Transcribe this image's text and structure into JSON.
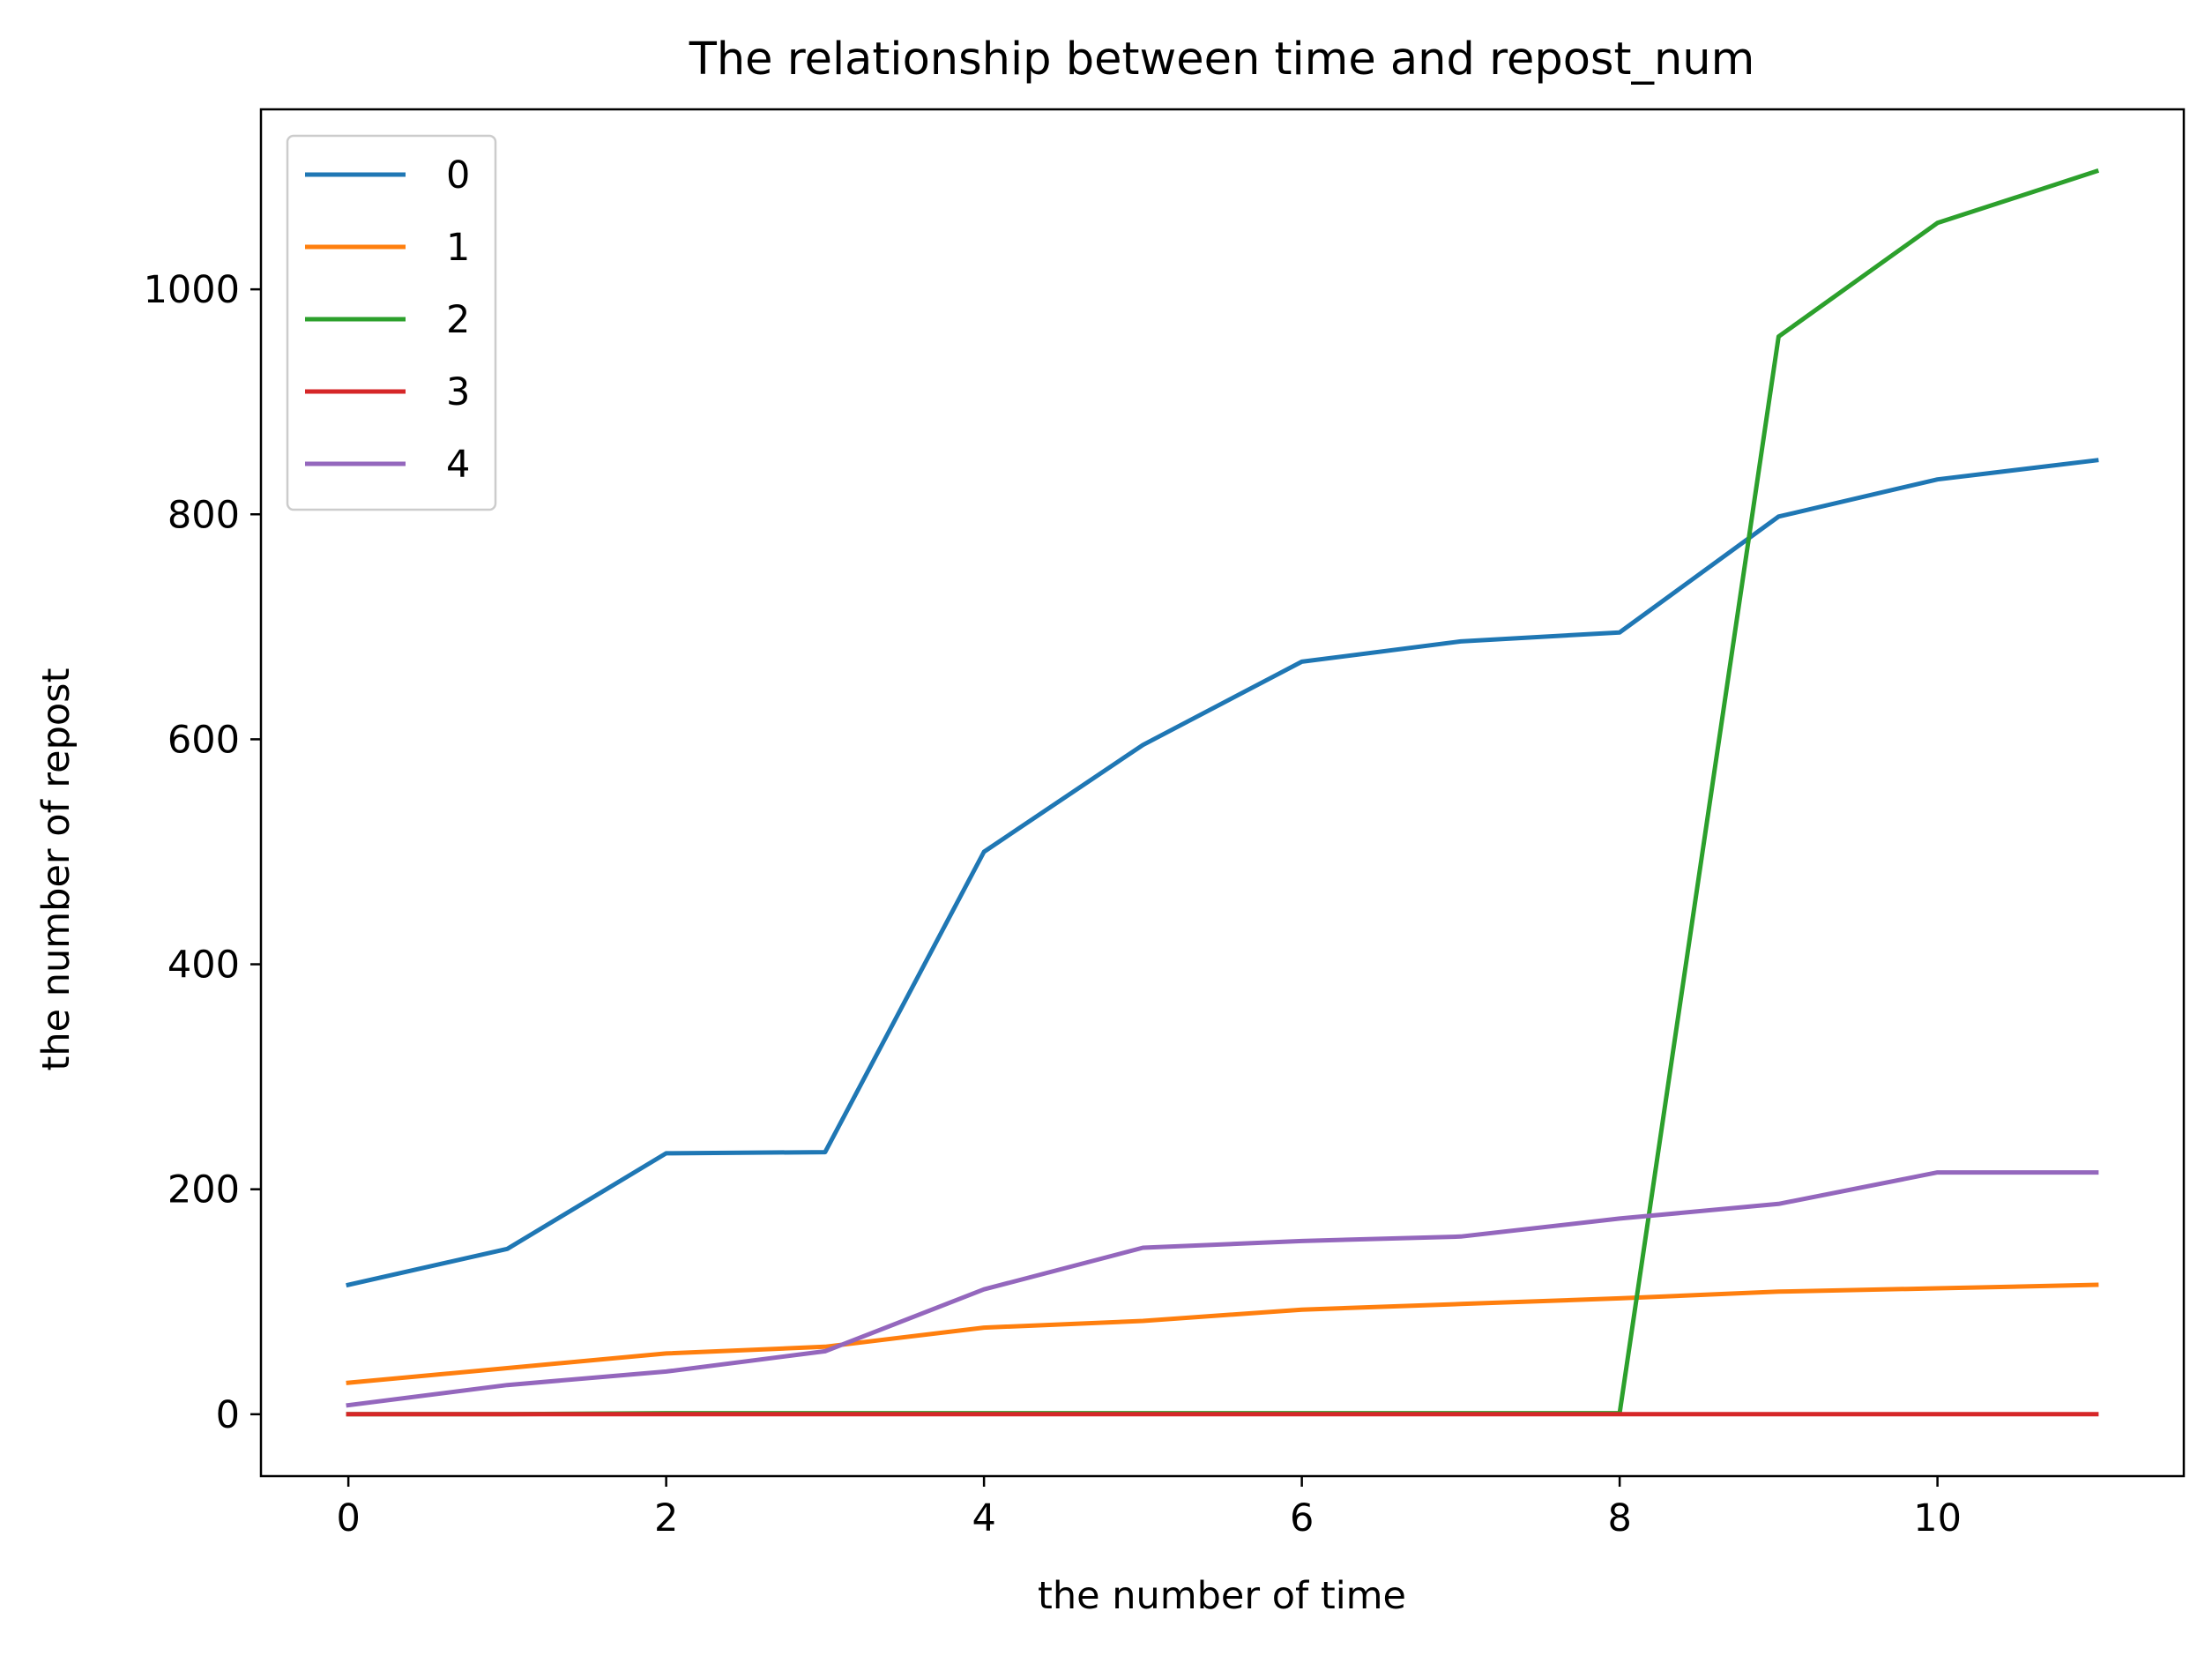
{
  "chart_data": {
    "type": "line",
    "title": "The relationship between time and repost_num",
    "xlabel": "the number of time",
    "ylabel": "the number of repost",
    "x": [
      0,
      1,
      2,
      3,
      4,
      5,
      6,
      7,
      8,
      9,
      10,
      11
    ],
    "xlim": [
      -0.55,
      11.55
    ],
    "ylim": [
      -55,
      1160
    ],
    "xticks": [
      0,
      2,
      4,
      6,
      8,
      10
    ],
    "xtick_labels": [
      "0",
      "2",
      "4",
      "6",
      "8",
      "10"
    ],
    "yticks": [
      0,
      200,
      400,
      600,
      800,
      1000
    ],
    "ytick_labels": [
      "0",
      "200",
      "400",
      "600",
      "800",
      "1000"
    ],
    "grid": false,
    "legend_position": "upper-left",
    "series": [
      {
        "name": "0",
        "color": "#1f77b4",
        "values": [
          115,
          147,
          232,
          233,
          500,
          595,
          669,
          687,
          695,
          798,
          831,
          848
        ]
      },
      {
        "name": "1",
        "color": "#ff7f0e",
        "values": [
          28,
          41,
          54,
          60,
          77,
          83,
          93,
          98,
          103,
          109,
          112,
          115
        ]
      },
      {
        "name": "2",
        "color": "#2ca02c",
        "values": [
          0,
          0,
          1,
          1,
          1,
          1,
          1,
          1,
          1,
          958,
          1059,
          1105
        ]
      },
      {
        "name": "3",
        "color": "#d62728",
        "values": [
          0,
          0,
          0,
          0,
          0,
          0,
          0,
          0,
          0,
          0,
          0,
          0
        ]
      },
      {
        "name": "4",
        "color": "#9467bd",
        "values": [
          8,
          26,
          38,
          56,
          111,
          148,
          154,
          158,
          174,
          187,
          215,
          215
        ]
      }
    ]
  }
}
